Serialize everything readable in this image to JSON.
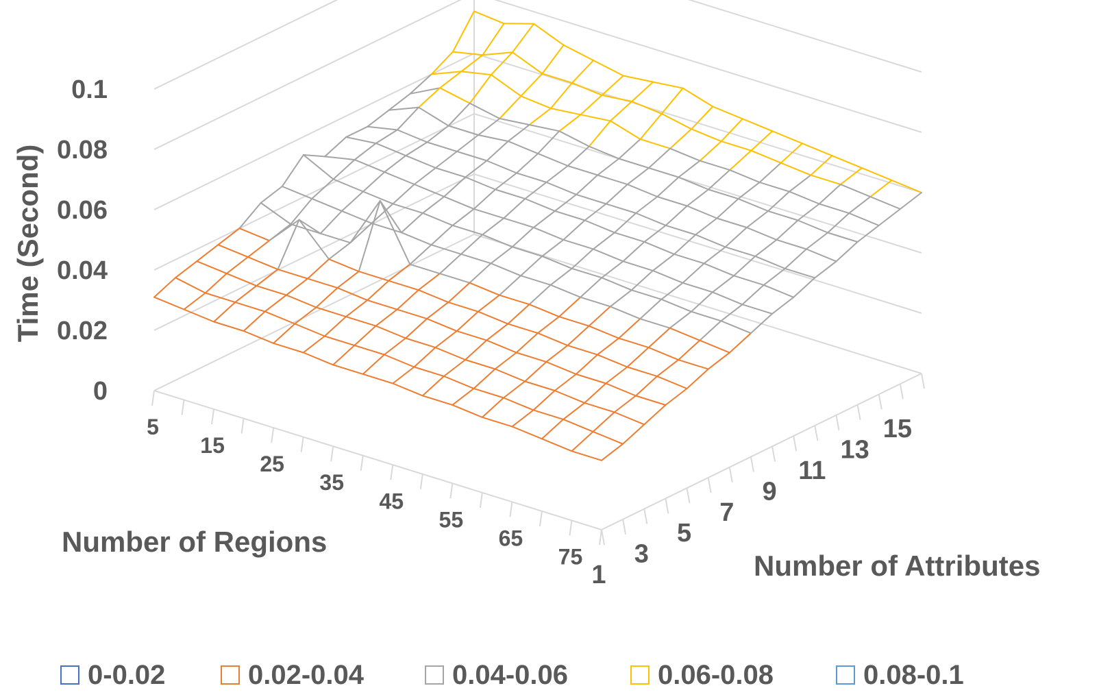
{
  "chart_data": {
    "type": "surface",
    "title": "",
    "zlabel": "Time (Second)",
    "xlabel": "Number of Regions",
    "ylabel": "Number of Attributes",
    "zlim": [
      0,
      0.1
    ],
    "z_ticks": [
      "0",
      "0.02",
      "0.04",
      "0.06",
      "0.08",
      "0.1"
    ],
    "x_ticks": [
      "5",
      "15",
      "25",
      "35",
      "45",
      "55",
      "65",
      "75"
    ],
    "y_ticks": [
      "1",
      "3",
      "5",
      "7",
      "9",
      "11",
      "13",
      "15"
    ],
    "regions": [
      5,
      10,
      15,
      20,
      25,
      30,
      35,
      40,
      45,
      50,
      55,
      60,
      65,
      70,
      75,
      80
    ],
    "attributes": [
      1,
      2,
      3,
      4,
      5,
      6,
      7,
      8,
      9,
      10,
      11,
      12,
      13,
      14,
      15,
      16
    ],
    "z": [
      [
        0.031,
        0.034,
        0.036,
        0.038,
        0.04,
        0.045,
        0.047,
        0.054,
        0.05,
        0.053,
        0.053,
        0.055,
        0.057,
        0.06,
        0.064,
        0.074
      ],
      [
        0.03,
        0.032,
        0.035,
        0.037,
        0.039,
        0.041,
        0.046,
        0.049,
        0.052,
        0.054,
        0.055,
        0.059,
        0.062,
        0.064,
        0.066,
        0.073
      ],
      [
        0.029,
        0.032,
        0.034,
        0.036,
        0.049,
        0.041,
        0.045,
        0.048,
        0.051,
        0.053,
        0.054,
        0.056,
        0.06,
        0.066,
        0.07,
        0.076
      ],
      [
        0.029,
        0.032,
        0.034,
        0.036,
        0.039,
        0.041,
        0.044,
        0.047,
        0.05,
        0.052,
        0.054,
        0.056,
        0.058,
        0.062,
        0.066,
        0.072
      ],
      [
        0.028,
        0.031,
        0.033,
        0.036,
        0.038,
        0.058,
        0.044,
        0.047,
        0.049,
        0.052,
        0.054,
        0.057,
        0.059,
        0.061,
        0.066,
        0.07
      ],
      [
        0.028,
        0.03,
        0.033,
        0.035,
        0.038,
        0.04,
        0.043,
        0.046,
        0.048,
        0.051,
        0.053,
        0.056,
        0.06,
        0.062,
        0.065,
        0.068
      ],
      [
        0.027,
        0.03,
        0.033,
        0.035,
        0.038,
        0.04,
        0.043,
        0.046,
        0.048,
        0.051,
        0.053,
        0.055,
        0.058,
        0.063,
        0.066,
        0.069
      ],
      [
        0.027,
        0.03,
        0.032,
        0.035,
        0.037,
        0.04,
        0.043,
        0.045,
        0.048,
        0.05,
        0.052,
        0.055,
        0.057,
        0.06,
        0.065,
        0.07
      ],
      [
        0.027,
        0.029,
        0.032,
        0.034,
        0.037,
        0.039,
        0.042,
        0.045,
        0.047,
        0.05,
        0.052,
        0.055,
        0.057,
        0.06,
        0.063,
        0.067
      ],
      [
        0.026,
        0.029,
        0.031,
        0.034,
        0.036,
        0.039,
        0.042,
        0.044,
        0.047,
        0.049,
        0.052,
        0.054,
        0.057,
        0.059,
        0.062,
        0.066
      ],
      [
        0.026,
        0.028,
        0.031,
        0.033,
        0.036,
        0.038,
        0.041,
        0.044,
        0.046,
        0.049,
        0.051,
        0.054,
        0.056,
        0.059,
        0.062,
        0.065
      ],
      [
        0.025,
        0.028,
        0.03,
        0.033,
        0.035,
        0.038,
        0.041,
        0.043,
        0.046,
        0.048,
        0.051,
        0.053,
        0.056,
        0.058,
        0.061,
        0.064
      ],
      [
        0.025,
        0.027,
        0.03,
        0.032,
        0.035,
        0.037,
        0.04,
        0.043,
        0.045,
        0.048,
        0.05,
        0.053,
        0.055,
        0.058,
        0.06,
        0.063
      ],
      [
        0.024,
        0.027,
        0.029,
        0.032,
        0.034,
        0.037,
        0.04,
        0.042,
        0.045,
        0.047,
        0.05,
        0.052,
        0.055,
        0.057,
        0.06,
        0.062
      ],
      [
        0.023,
        0.026,
        0.029,
        0.031,
        0.034,
        0.036,
        0.039,
        0.042,
        0.044,
        0.047,
        0.049,
        0.052,
        0.054,
        0.057,
        0.059,
        0.061
      ],
      [
        0.023,
        0.025,
        0.028,
        0.031,
        0.033,
        0.036,
        0.038,
        0.041,
        0.044,
        0.046,
        0.049,
        0.051,
        0.054,
        0.056,
        0.058,
        0.06
      ]
    ],
    "color_bands": [
      {
        "name": "0-0.02",
        "min": 0,
        "max": 0.02,
        "color": "#4472C4"
      },
      {
        "name": "0.02-0.04",
        "min": 0.02,
        "max": 0.04,
        "color": "#ED7D31"
      },
      {
        "name": "0.04-0.06",
        "min": 0.04,
        "max": 0.06,
        "color": "#A5A5A5"
      },
      {
        "name": "0.06-0.08",
        "min": 0.06,
        "max": 0.08,
        "color": "#FFC000"
      },
      {
        "name": "0.08-0.1",
        "min": 0.08,
        "max": 0.1,
        "color": "#5B9BD5"
      }
    ],
    "grid": true,
    "legend_position": "bottom"
  },
  "colors": {
    "text": "#595959",
    "gridline": "#D9D9D9"
  }
}
